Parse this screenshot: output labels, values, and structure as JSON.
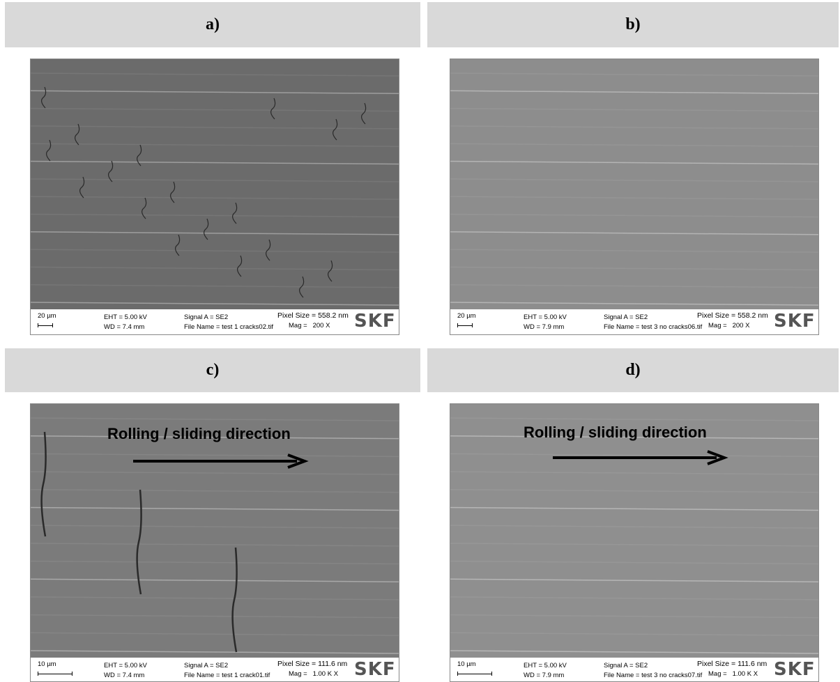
{
  "panels": [
    {
      "label": "a)",
      "scale": "20 µm",
      "eht": "EHT = 5.00 kV",
      "wd": "WD = 7.4 mm",
      "signal": "Signal A = SE2",
      "file": "File Name = test 1 cracks02.tif",
      "pixel_size": "Pixel Size = 558.2 nm",
      "mag": "Mag =   200 X",
      "logo": "SKF"
    },
    {
      "label": "b)",
      "scale": "20 µm",
      "eht": "EHT = 5.00 kV",
      "wd": "WD = 7.9 mm",
      "signal": "Signal A = SE2",
      "file": "File Name = test 3 no cracks06.tif",
      "pixel_size": "Pixel Size = 558.2 nm",
      "mag": "Mag =   200 X",
      "logo": "SKF"
    },
    {
      "label": "c)",
      "scale": "10 µm",
      "eht": "EHT = 5.00 kV",
      "wd": "WD = 7.4 mm",
      "signal": "Signal A = SE2",
      "file": "File Name = test 1 crack01.tif",
      "pixel_size": "Pixel Size = 111.6 nm",
      "mag": "Mag =   1.00 K X",
      "logo": "SKF",
      "annotation": "Rolling / sliding direction"
    },
    {
      "label": "d)",
      "scale": "10 µm",
      "eht": "EHT = 5.00 kV",
      "wd": "WD = 7.9 mm",
      "signal": "Signal A = SE2",
      "file": "File Name = test 3 no cracks07.tif",
      "pixel_size": "Pixel Size = 111.6 nm",
      "mag": "Mag =   1.00 K X",
      "logo": "SKF",
      "annotation": "Rolling / sliding direction"
    }
  ]
}
